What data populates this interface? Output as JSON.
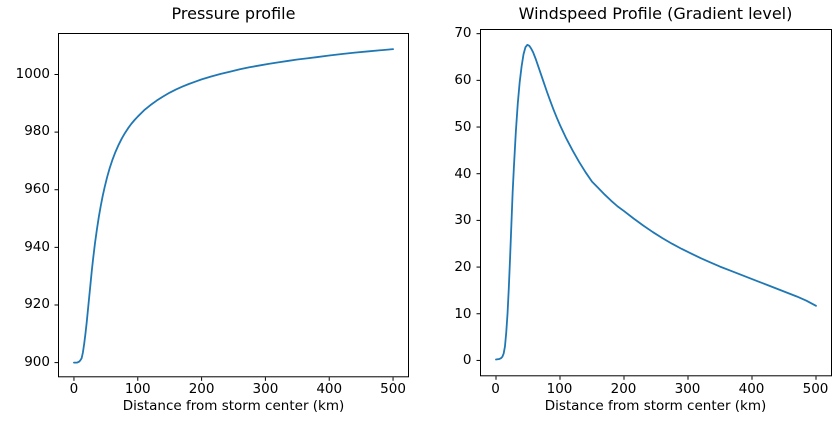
{
  "figure": {
    "background": "#ffffff",
    "text_color": "#000000",
    "line_color": "#1f77b4"
  },
  "chart_data": [
    {
      "type": "line",
      "title": "Pressure profile",
      "xlabel": "Distance from storm center (km)",
      "ylabel": "",
      "series_name": "pressure",
      "line_color": "#1f77b4",
      "grid": false,
      "legend": null,
      "xlim": [
        -25,
        525
      ],
      "ylim": [
        894.9,
        1014.4
      ],
      "xticks": [
        0,
        100,
        200,
        300,
        400,
        500
      ],
      "yticks": [
        900,
        920,
        940,
        960,
        980,
        1000
      ],
      "points": [
        [
          0,
          900
        ],
        [
          5,
          900
        ],
        [
          8,
          900.3
        ],
        [
          10,
          900.8
        ],
        [
          12,
          901.5
        ],
        [
          14,
          903.5
        ],
        [
          16,
          906.5
        ],
        [
          18,
          910
        ],
        [
          20,
          914
        ],
        [
          22,
          918.5
        ],
        [
          24,
          923
        ],
        [
          26,
          927.5
        ],
        [
          28,
          932
        ],
        [
          30,
          936
        ],
        [
          33,
          941.5
        ],
        [
          36,
          946.3
        ],
        [
          39,
          950.6
        ],
        [
          42,
          954.4
        ],
        [
          45,
          957.8
        ],
        [
          48,
          960.8
        ],
        [
          52,
          964.4
        ],
        [
          56,
          967.5
        ],
        [
          60,
          970.2
        ],
        [
          65,
          973.1
        ],
        [
          70,
          975.6
        ],
        [
          75,
          977.8
        ],
        [
          80,
          979.7
        ],
        [
          85,
          981.4
        ],
        [
          90,
          982.9
        ],
        [
          95,
          984.2
        ],
        [
          100,
          985.4
        ],
        [
          110,
          987.6
        ],
        [
          120,
          989.4
        ],
        [
          130,
          991
        ],
        [
          140,
          992.4
        ],
        [
          150,
          993.7
        ],
        [
          160,
          994.8
        ],
        [
          170,
          995.8
        ],
        [
          180,
          996.7
        ],
        [
          190,
          997.5
        ],
        [
          200,
          998.3
        ],
        [
          215,
          999.3
        ],
        [
          230,
          1000.2
        ],
        [
          245,
          1001
        ],
        [
          260,
          1001.8
        ],
        [
          275,
          1002.5
        ],
        [
          290,
          1003.1
        ],
        [
          305,
          1003.7
        ],
        [
          320,
          1004.2
        ],
        [
          335,
          1004.7
        ],
        [
          350,
          1005.2
        ],
        [
          365,
          1005.6
        ],
        [
          380,
          1006
        ],
        [
          400,
          1006.6
        ],
        [
          420,
          1007.1
        ],
        [
          440,
          1007.6
        ],
        [
          460,
          1008
        ],
        [
          480,
          1008.4
        ],
        [
          500,
          1008.8
        ]
      ]
    },
    {
      "type": "line",
      "title": "Windspeed Profile (Gradient level)",
      "xlabel": "Distance from storm center (km)",
      "ylabel": "",
      "series_name": "windspeed",
      "line_color": "#1f77b4",
      "grid": false,
      "legend": null,
      "xlim": [
        -25,
        525
      ],
      "ylim": [
        -3.4,
        71.0
      ],
      "xticks": [
        0,
        100,
        200,
        300,
        400,
        500
      ],
      "yticks": [
        0,
        10,
        20,
        30,
        40,
        50,
        60,
        70
      ],
      "points": [
        [
          0,
          0.2
        ],
        [
          5,
          0.3
        ],
        [
          8,
          0.5
        ],
        [
          10,
          0.8
        ],
        [
          12,
          1.5
        ],
        [
          14,
          3
        ],
        [
          16,
          6
        ],
        [
          18,
          10
        ],
        [
          20,
          15.5
        ],
        [
          22,
          22
        ],
        [
          24,
          29
        ],
        [
          26,
          36
        ],
        [
          28,
          41.5
        ],
        [
          31,
          49
        ],
        [
          34,
          55
        ],
        [
          37,
          59.6
        ],
        [
          40,
          63
        ],
        [
          43,
          65.6
        ],
        [
          46,
          67.1
        ],
        [
          49,
          67.6
        ],
        [
          52,
          67.4
        ],
        [
          55,
          66.8
        ],
        [
          58,
          66
        ],
        [
          62,
          64.6
        ],
        [
          66,
          63
        ],
        [
          70,
          61.4
        ],
        [
          75,
          59.4
        ],
        [
          80,
          57.4
        ],
        [
          85,
          55.5
        ],
        [
          90,
          53.7
        ],
        [
          95,
          52
        ],
        [
          100,
          50.4
        ],
        [
          110,
          47.5
        ],
        [
          120,
          44.9
        ],
        [
          130,
          42.5
        ],
        [
          140,
          40.3
        ],
        [
          150,
          38.3
        ],
        [
          160,
          36.9
        ],
        [
          170,
          35.5
        ],
        [
          180,
          34.2
        ],
        [
          190,
          33
        ],
        [
          200,
          32
        ],
        [
          215,
          30.4
        ],
        [
          230,
          28.9
        ],
        [
          245,
          27.5
        ],
        [
          260,
          26.2
        ],
        [
          275,
          25
        ],
        [
          290,
          23.9
        ],
        [
          305,
          22.9
        ],
        [
          320,
          21.9
        ],
        [
          335,
          21
        ],
        [
          350,
          20.1
        ],
        [
          365,
          19.3
        ],
        [
          380,
          18.5
        ],
        [
          395,
          17.7
        ],
        [
          410,
          16.9
        ],
        [
          425,
          16.1
        ],
        [
          440,
          15.3
        ],
        [
          455,
          14.5
        ],
        [
          470,
          13.7
        ],
        [
          485,
          12.8
        ],
        [
          500,
          11.7
        ]
      ]
    }
  ]
}
